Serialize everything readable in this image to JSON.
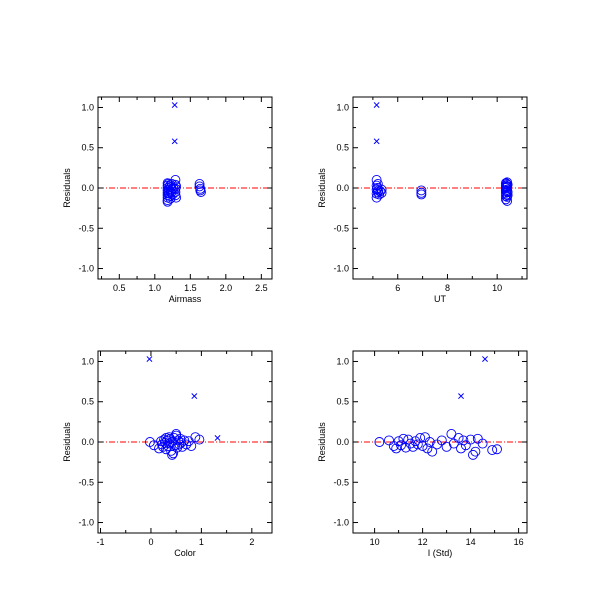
{
  "colors": {
    "points": "#0000ff",
    "zero_line": "#ff0000",
    "axes": "#000000"
  },
  "chart_data": [
    {
      "type": "scatter",
      "xlabel": "Airmass",
      "ylabel": "Residuals",
      "xlim": [
        0.2,
        2.65
      ],
      "ylim": [
        -1.13,
        1.13
      ],
      "xticks": [
        "0.5",
        "1.0",
        "1.5",
        "2.0",
        "2.5"
      ],
      "xtick_values": [
        0.5,
        1.0,
        1.5,
        2.0,
        2.5
      ],
      "yticks": [
        "-1.0",
        "-0.5",
        "0.0",
        "0.5",
        "1.0"
      ],
      "ytick_values": [
        -1.0,
        -0.5,
        0.0,
        0.5,
        1.0
      ],
      "reference_line_y": 0.0,
      "series": [
        {
          "marker": "circle",
          "x": [
            1.18,
            1.18,
            1.18,
            1.18,
            1.18,
            1.18,
            1.18,
            1.18,
            1.18,
            1.19,
            1.2,
            1.2,
            1.21,
            1.21,
            1.22,
            1.22,
            1.22,
            1.23,
            1.23,
            1.24,
            1.24,
            1.25,
            1.26,
            1.29,
            1.29,
            1.29,
            1.29,
            1.29,
            1.3,
            1.3,
            1.63,
            1.63,
            1.64,
            1.64,
            1.65
          ],
          "y": [
            0.06,
            0.03,
            0.0,
            -0.03,
            -0.06,
            -0.09,
            -0.12,
            -0.15,
            -0.17,
            0.05,
            -0.02,
            -0.07,
            0.02,
            -0.1,
            0.04,
            -0.04,
            -0.13,
            0.01,
            -0.06,
            0.05,
            -0.02,
            -0.08,
            0.0,
            0.1,
            0.04,
            -0.01,
            -0.05,
            -0.09,
            0.02,
            -0.12,
            0.05,
            0.02,
            -0.01,
            -0.03,
            -0.05
          ]
        },
        {
          "marker": "x",
          "x": [
            1.28,
            1.28
          ],
          "y": [
            1.03,
            0.58
          ]
        }
      ]
    },
    {
      "type": "scatter",
      "xlabel": "UT",
      "ylabel": "Residuals",
      "xlim": [
        4.2,
        11.2
      ],
      "ylim": [
        -1.13,
        1.13
      ],
      "xticks": [
        "6",
        "8",
        "10"
      ],
      "xtick_values": [
        6,
        8,
        10
      ],
      "yticks": [
        "-1.0",
        "-0.5",
        "0.0",
        "0.5",
        "1.0"
      ],
      "ytick_values": [
        -1.0,
        -0.5,
        0.0,
        0.5,
        1.0
      ],
      "reference_line_y": 0.0,
      "series": [
        {
          "marker": "circle",
          "x": [
            5.15,
            5.15,
            5.15,
            5.15,
            5.15,
            5.18,
            5.2,
            5.2,
            5.22,
            5.25,
            5.3,
            5.35,
            5.35,
            6.95,
            6.95,
            6.95,
            10.35,
            10.35,
            10.35,
            10.35,
            10.35,
            10.35,
            10.35,
            10.38,
            10.38,
            10.38,
            10.38,
            10.4,
            10.4,
            10.4,
            10.4,
            10.4,
            10.42,
            10.42,
            10.42
          ],
          "y": [
            0.1,
            0.03,
            -0.02,
            -0.07,
            -0.12,
            0.0,
            -0.05,
            0.05,
            -0.03,
            -0.08,
            -0.04,
            -0.02,
            -0.06,
            -0.03,
            -0.06,
            -0.08,
            0.06,
            0.03,
            0.0,
            -0.03,
            -0.06,
            -0.1,
            -0.14,
            0.05,
            0.01,
            -0.04,
            -0.08,
            0.07,
            0.02,
            -0.02,
            -0.11,
            -0.16,
            0.04,
            -0.05,
            -0.09
          ]
        },
        {
          "marker": "x",
          "x": [
            5.15,
            5.15
          ],
          "y": [
            1.03,
            0.58
          ]
        }
      ]
    },
    {
      "type": "scatter",
      "xlabel": "Color",
      "ylabel": "Residuals",
      "xlim": [
        -1.05,
        2.4
      ],
      "ylim": [
        -1.13,
        1.13
      ],
      "xticks": [
        "-1",
        "0",
        "1",
        "2"
      ],
      "xtick_values": [
        -1,
        0,
        1,
        2
      ],
      "yticks": [
        "-1.0",
        "-0.5",
        "0.0",
        "0.5",
        "1.0"
      ],
      "ytick_values": [
        -1.0,
        -0.5,
        0.0,
        0.5,
        1.0
      ],
      "reference_line_y": 0.0,
      "series": [
        {
          "marker": "circle",
          "x": [
            -0.02,
            0.06,
            0.16,
            0.2,
            0.22,
            0.24,
            0.26,
            0.28,
            0.3,
            0.3,
            0.32,
            0.34,
            0.36,
            0.36,
            0.38,
            0.4,
            0.42,
            0.44,
            0.46,
            0.48,
            0.5,
            0.52,
            0.54,
            0.56,
            0.58,
            0.6,
            0.62,
            0.66,
            0.7,
            0.75,
            0.8,
            0.88,
            0.96,
            0.42,
            0.5
          ],
          "y": [
            0.0,
            -0.04,
            -0.08,
            0.01,
            -0.03,
            -0.06,
            0.03,
            -0.01,
            0.05,
            -0.09,
            0.02,
            -0.05,
            0.06,
            -0.02,
            0.04,
            -0.11,
            0.0,
            -0.14,
            0.05,
            -0.04,
            0.1,
            -0.07,
            0.02,
            -0.03,
            0.04,
            -0.01,
            -0.06,
            0.02,
            -0.03,
            0.01,
            -0.05,
            0.06,
            0.03,
            -0.16,
            0.08
          ]
        },
        {
          "marker": "x",
          "x": [
            -0.03,
            0.86,
            1.32
          ],
          "y": [
            1.03,
            0.57,
            0.05
          ]
        }
      ]
    },
    {
      "type": "scatter",
      "xlabel": "I (Std)",
      "ylabel": "Residuals",
      "xlim": [
        9.1,
        16.35
      ],
      "ylim": [
        -1.13,
        1.13
      ],
      "xticks": [
        "10",
        "12",
        "14",
        "16"
      ],
      "xtick_values": [
        10,
        12,
        14,
        16
      ],
      "yticks": [
        "-1.0",
        "-0.5",
        "0.0",
        "0.5",
        "1.0"
      ],
      "ytick_values": [
        -1.0,
        -0.5,
        0.0,
        0.5,
        1.0
      ],
      "reference_line_y": 0.0,
      "series": [
        {
          "marker": "circle",
          "x": [
            10.2,
            10.6,
            10.8,
            10.9,
            11.0,
            11.1,
            11.2,
            11.3,
            11.4,
            11.5,
            11.6,
            11.7,
            11.8,
            11.9,
            12.0,
            12.1,
            12.2,
            12.3,
            12.4,
            12.6,
            12.8,
            13.0,
            13.2,
            13.3,
            13.5,
            13.6,
            13.7,
            13.8,
            14.0,
            14.1,
            14.2,
            14.3,
            14.5,
            14.9,
            15.1
          ],
          "y": [
            0.0,
            0.02,
            -0.05,
            -0.08,
            0.01,
            -0.04,
            0.04,
            -0.07,
            0.03,
            -0.02,
            -0.06,
            0.01,
            -0.03,
            0.05,
            -0.05,
            0.06,
            -0.08,
            0.0,
            -0.12,
            -0.03,
            0.02,
            -0.06,
            0.1,
            -0.02,
            0.05,
            -0.08,
            0.02,
            -0.04,
            0.03,
            -0.16,
            -0.12,
            0.04,
            -0.02,
            -0.1,
            -0.09
          ]
        },
        {
          "marker": "x",
          "x": [
            14.6,
            13.6
          ],
          "y": [
            1.03,
            0.57
          ]
        }
      ]
    }
  ]
}
